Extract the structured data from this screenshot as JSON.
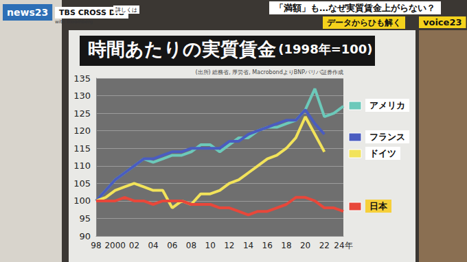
{
  "chart_data": {
    "type": "line",
    "title": "時間あたりの実質賃金",
    "subtitle": "(1998年=100)",
    "source": "(出所) 総務省, 厚労省, MacrobondよりBNPパリバ証券作成",
    "annotations": [
      "news23",
      "TBS CROSS DIG",
      "with Bloomberg",
      "詳しくは",
      "「満額」も…なぜ実質賃金上がらない？",
      "データからひも解く",
      "voice23"
    ],
    "categories": [
      "98",
      null,
      "2000",
      null,
      "02",
      null,
      "04",
      null,
      "06",
      null,
      "08",
      null,
      "10",
      null,
      "12",
      null,
      "14",
      null,
      "16",
      null,
      "18",
      null,
      "20",
      null,
      "22",
      null,
      "24年"
    ],
    "series": [
      {
        "name": "アメリカ",
        "color": "#6cc9ba",
        "values": [
          100,
          103,
          106,
          108,
          110,
          112,
          111,
          112,
          113,
          113,
          114,
          116,
          116,
          114,
          116,
          118,
          118,
          120,
          121,
          121,
          122,
          123,
          126,
          132,
          124,
          125,
          127
        ]
      },
      {
        "name": "フランス",
        "color": "#4a5cc0",
        "values": [
          100,
          103,
          106,
          108,
          110,
          112,
          112,
          113,
          114,
          114,
          115,
          115,
          115,
          115,
          117,
          117,
          119,
          120,
          121,
          122,
          123,
          123,
          126,
          122,
          119,
          null,
          null
        ]
      },
      {
        "name": "ドイツ",
        "color": "#f2e35a",
        "values": [
          100,
          101,
          103,
          104,
          105,
          104,
          103,
          103,
          98,
          100,
          99,
          102,
          102,
          103,
          105,
          106,
          108,
          110,
          112,
          113,
          115,
          118,
          124,
          119,
          114,
          null,
          null
        ]
      },
      {
        "name": "日本",
        "color": "#e8473a",
        "values": [
          100,
          100,
          100,
          101,
          100,
          100,
          99,
          100,
          100,
          100,
          99,
          99,
          99,
          98,
          98,
          97,
          96,
          97,
          97,
          98,
          99,
          101,
          101,
          100,
          98,
          98,
          97
        ]
      }
    ],
    "ylim": [
      90,
      135
    ],
    "yticks": [
      90,
      95,
      100,
      105,
      110,
      115,
      120,
      125,
      130,
      135
    ],
    "grid": true
  }
}
